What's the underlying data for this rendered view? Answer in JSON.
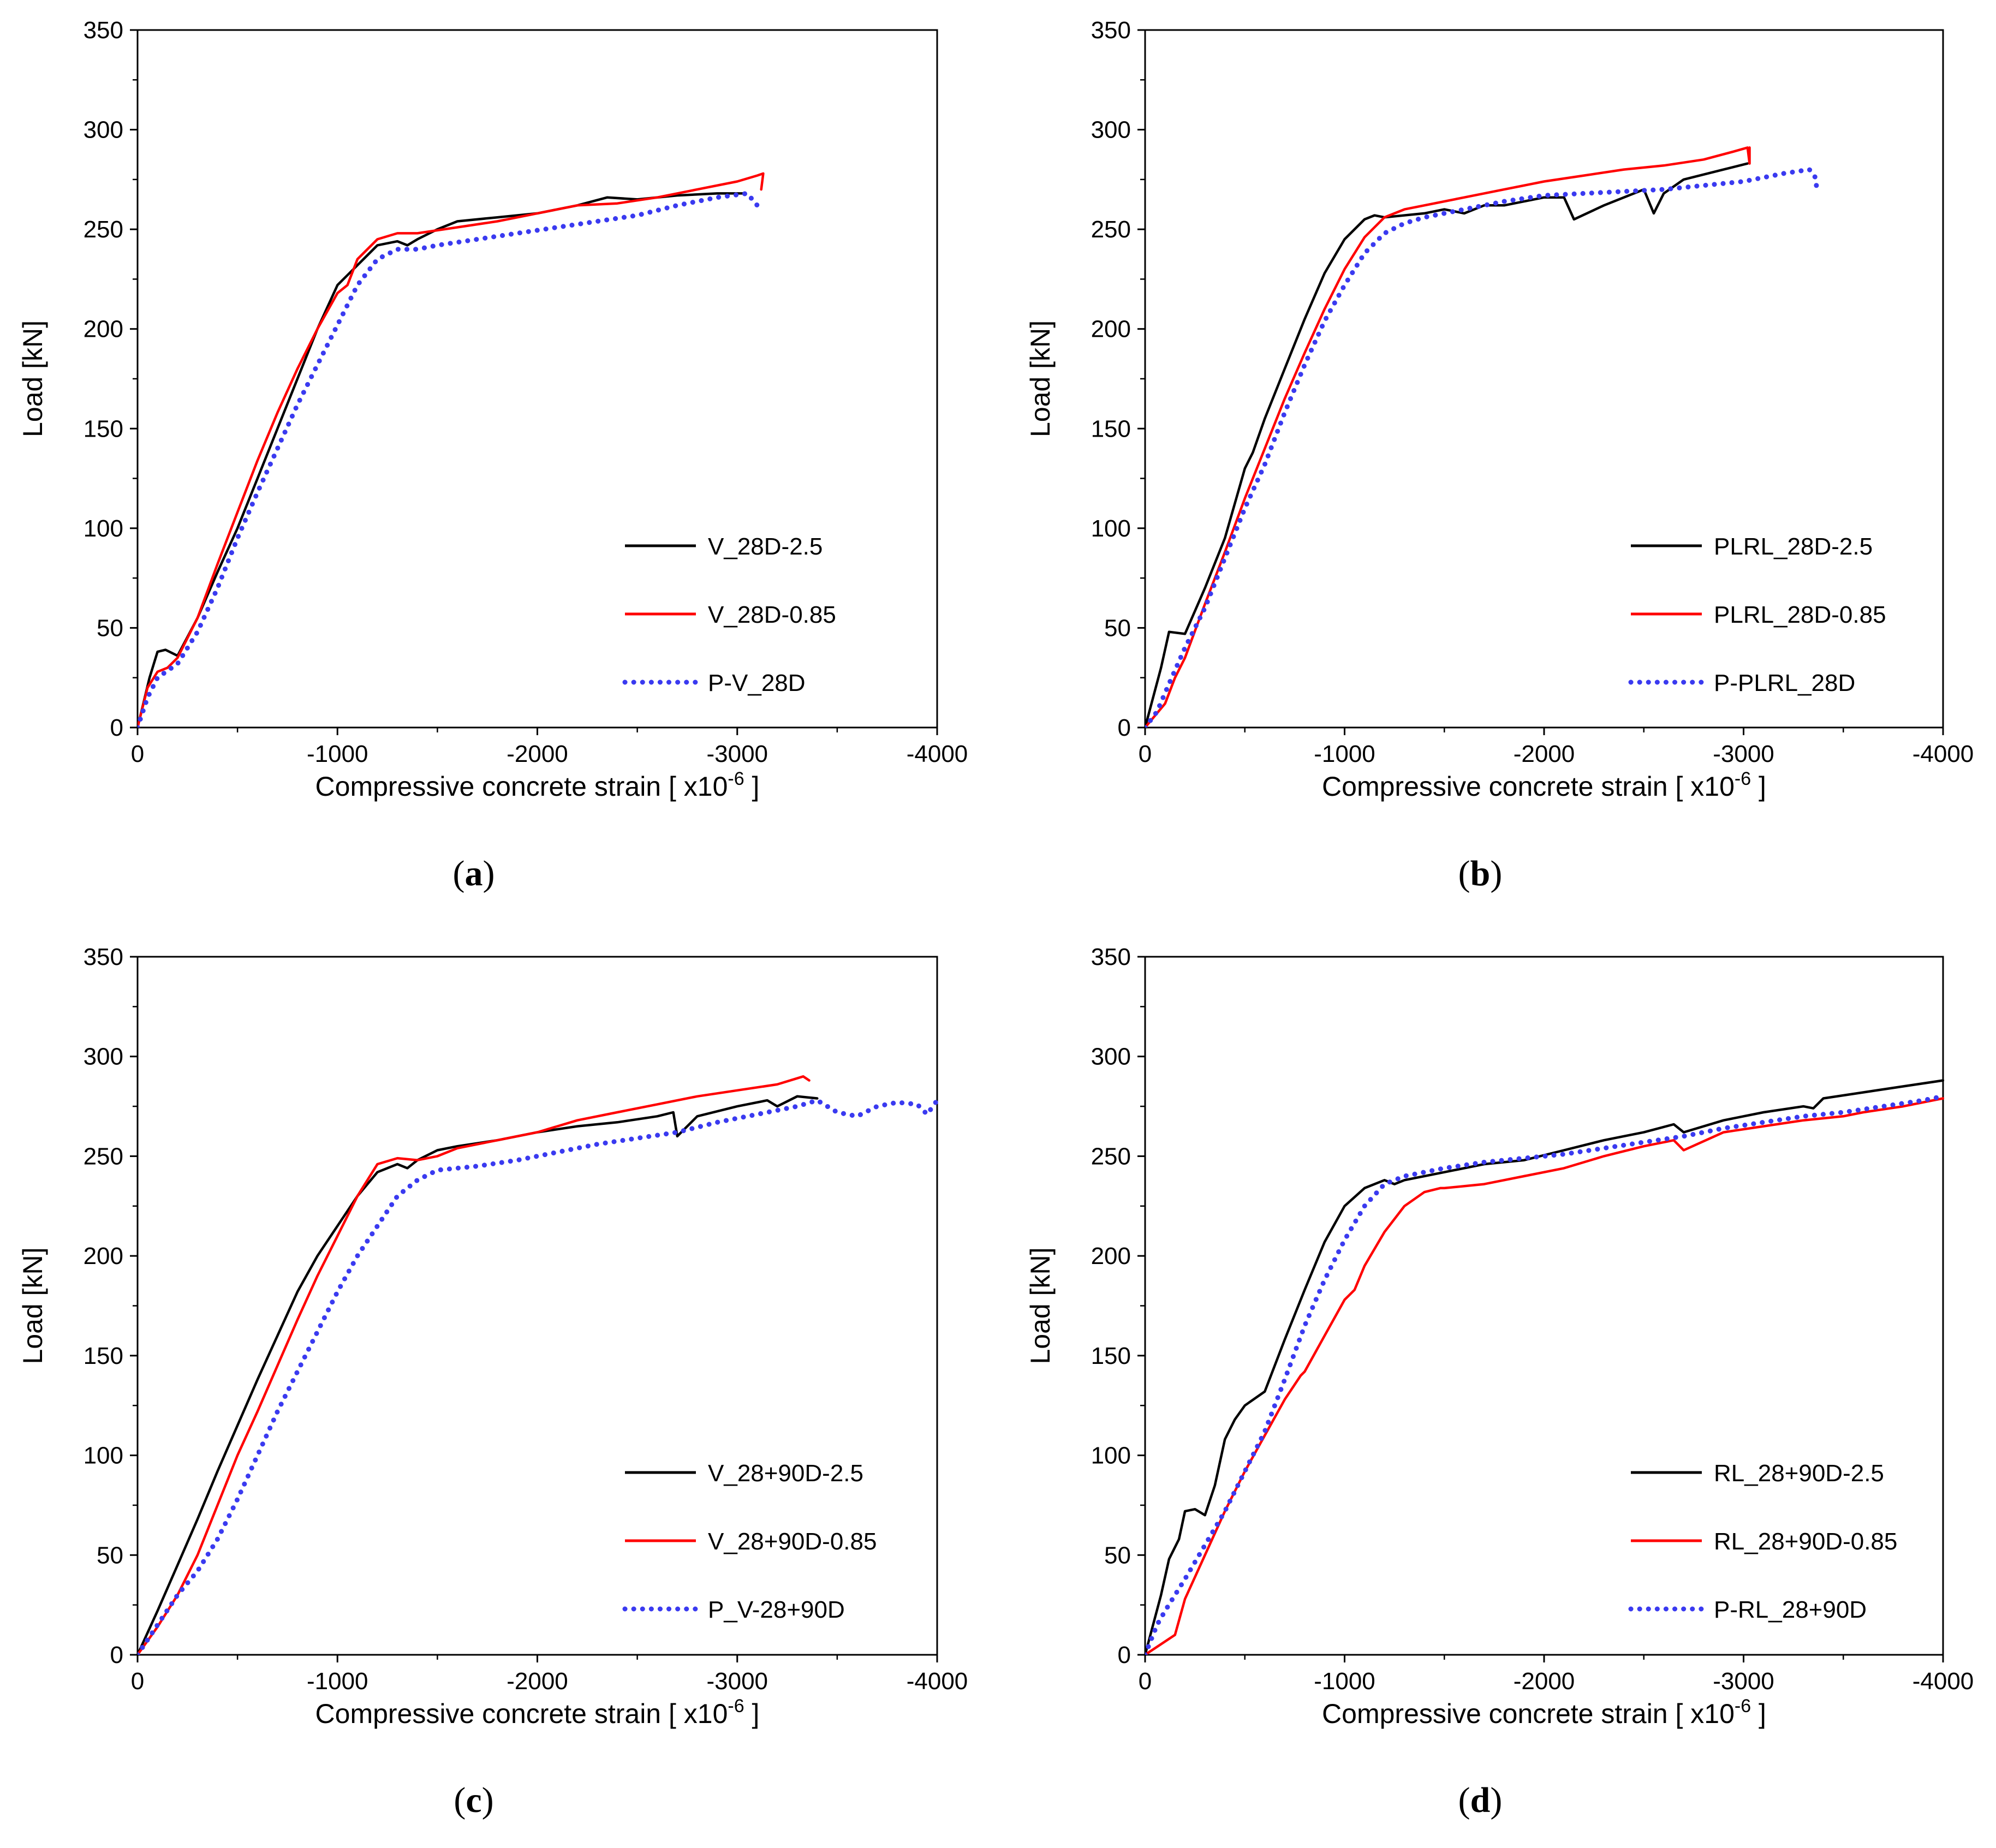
{
  "colors": {
    "black": "#000000",
    "red": "#ff0000",
    "blue": "#3a3af0"
  },
  "chart_data": [
    {
      "panel_label": "a",
      "type": "line",
      "xlabel": "Compressive concrete strain [ x10",
      "xlabel_sup": "-6",
      "xlabel_end": " ]",
      "ylabel": "Load [kN]",
      "xlim": [
        0,
        -4000
      ],
      "ylim": [
        0,
        350
      ],
      "xticks": [
        0,
        -1000,
        -2000,
        -3000,
        -4000
      ],
      "yticks": [
        0,
        50,
        100,
        150,
        200,
        250,
        300,
        350
      ],
      "series": [
        {
          "name": "V_28D-2.5",
          "color": "#000000",
          "style": "solid",
          "x": [
            0,
            -60,
            -100,
            -140,
            -200,
            -300,
            -400,
            -500,
            -600,
            -700,
            -800,
            -900,
            -1000,
            -1100,
            -1200,
            -1300,
            -1350,
            -1400,
            -1500,
            -1600,
            -1800,
            -2000,
            -2200,
            -2350,
            -2500,
            -2700,
            -2900,
            -3030
          ],
          "y": [
            0,
            25,
            38,
            39,
            36,
            55,
            78,
            100,
            125,
            150,
            175,
            200,
            222,
            232,
            242,
            244,
            242,
            245,
            250,
            254,
            256,
            258,
            262,
            266,
            265,
            267,
            268,
            268
          ]
        },
        {
          "name": "V_28D-0.85",
          "color": "#ff0000",
          "style": "solid",
          "x": [
            0,
            -50,
            -100,
            -150,
            -200,
            -300,
            -400,
            -500,
            -600,
            -700,
            -800,
            -900,
            -1000,
            -1050,
            -1100,
            -1200,
            -1300,
            -1400,
            -1600,
            -1800,
            -2000,
            -2200,
            -2400,
            -2600,
            -2800,
            -3000,
            -3100,
            -3130,
            -3120
          ],
          "y": [
            0,
            20,
            28,
            30,
            35,
            55,
            82,
            108,
            134,
            158,
            180,
            200,
            218,
            222,
            235,
            245,
            248,
            248,
            251,
            254,
            258,
            262,
            263,
            266,
            270,
            274,
            277,
            278,
            270
          ]
        },
        {
          "name": "P-V_28D",
          "color": "#3a3af0",
          "style": "dotted",
          "x": [
            0,
            -50,
            -100,
            -200,
            -300,
            -400,
            -500,
            -600,
            -700,
            -800,
            -900,
            -1000,
            -1100,
            -1200,
            -1300,
            -1400,
            -1500,
            -1700,
            -1900,
            -2100,
            -2300,
            -2500,
            -2700,
            -2900,
            -3050,
            -3100,
            -3110
          ],
          "y": [
            0,
            15,
            25,
            32,
            48,
            70,
            95,
            118,
            140,
            162,
            182,
            202,
            222,
            235,
            240,
            240,
            242,
            245,
            248,
            251,
            254,
            257,
            262,
            266,
            268,
            262,
            258
          ]
        }
      ]
    },
    {
      "panel_label": "b",
      "type": "line",
      "xlabel": "Compressive concrete strain [ x10",
      "xlabel_sup": "-6",
      "xlabel_end": " ]",
      "ylabel": "Load [kN]",
      "xlim": [
        0,
        -4000
      ],
      "ylim": [
        0,
        350
      ],
      "xticks": [
        0,
        -1000,
        -2000,
        -3000,
        -4000
      ],
      "yticks": [
        0,
        50,
        100,
        150,
        200,
        250,
        300,
        350
      ],
      "series": [
        {
          "name": "PLRL_28D-2.5",
          "color": "#000000",
          "style": "solid",
          "x": [
            0,
            -80,
            -120,
            -200,
            -300,
            -400,
            -500,
            -540,
            -600,
            -700,
            -800,
            -900,
            -1000,
            -1100,
            -1150,
            -1200,
            -1400,
            -1500,
            -1600,
            -1700,
            -1800,
            -2000,
            -2100,
            -2150,
            -2300,
            -2500,
            -2550,
            -2600,
            -2700,
            -2900,
            -3020
          ],
          "y": [
            0,
            30,
            48,
            47,
            70,
            95,
            130,
            138,
            155,
            180,
            205,
            228,
            245,
            255,
            257,
            256,
            258,
            260,
            258,
            262,
            262,
            266,
            266,
            255,
            262,
            270,
            258,
            268,
            275,
            280,
            283
          ]
        },
        {
          "name": "PLRL_28D-0.85",
          "color": "#ff0000",
          "style": "solid",
          "x": [
            0,
            -100,
            -150,
            -200,
            -300,
            -400,
            -500,
            -600,
            -700,
            -800,
            -900,
            -1000,
            -1100,
            -1200,
            -1300,
            -1400,
            -1600,
            -1800,
            -2000,
            -2200,
            -2400,
            -2600,
            -2800,
            -2950,
            -3020,
            -3030,
            -3030
          ],
          "y": [
            0,
            12,
            25,
            35,
            62,
            88,
            115,
            140,
            165,
            188,
            210,
            230,
            246,
            256,
            260,
            262,
            266,
            270,
            274,
            277,
            280,
            282,
            285,
            289,
            291,
            283,
            291
          ]
        },
        {
          "name": "P-PLRL_28D",
          "color": "#3a3af0",
          "style": "dotted",
          "x": [
            0,
            -60,
            -120,
            -200,
            -300,
            -400,
            -500,
            -600,
            -700,
            -800,
            -900,
            -1000,
            -1100,
            -1200,
            -1300,
            -1400,
            -1600,
            -1800,
            -2000,
            -2200,
            -2400,
            -2600,
            -2800,
            -3000,
            -3200,
            -3330,
            -3360,
            -3370
          ],
          "y": [
            0,
            8,
            22,
            40,
            60,
            85,
            110,
            132,
            158,
            182,
            204,
            222,
            238,
            248,
            253,
            256,
            260,
            264,
            267,
            268,
            269,
            270,
            272,
            274,
            278,
            280,
            276,
            268
          ]
        }
      ]
    },
    {
      "panel_label": "c",
      "type": "line",
      "xlabel": "Compressive concrete strain [ x10",
      "xlabel_sup": "-6",
      "xlabel_end": " ]",
      "ylabel": "Load [kN]",
      "xlim": [
        0,
        -4000
      ],
      "ylim": [
        0,
        350
      ],
      "xticks": [
        0,
        -1000,
        -2000,
        -3000,
        -4000
      ],
      "yticks": [
        0,
        50,
        100,
        150,
        200,
        250,
        300,
        350
      ],
      "series": [
        {
          "name": "V_28+90D-2.5",
          "color": "#000000",
          "style": "solid",
          "x": [
            0,
            -100,
            -200,
            -300,
            -400,
            -500,
            -600,
            -700,
            -800,
            -900,
            -1000,
            -1100,
            -1200,
            -1300,
            -1350,
            -1400,
            -1500,
            -1600,
            -1800,
            -2000,
            -2200,
            -2400,
            -2600,
            -2680,
            -2700,
            -2800,
            -3000,
            -3150,
            -3200,
            -3300,
            -3400
          ],
          "y": [
            0,
            22,
            45,
            68,
            92,
            115,
            138,
            160,
            182,
            200,
            215,
            230,
            242,
            246,
            244,
            248,
            253,
            255,
            258,
            262,
            265,
            267,
            270,
            272,
            260,
            270,
            275,
            278,
            275,
            280,
            279
          ]
        },
        {
          "name": "V_28+90D-0.85",
          "color": "#ff0000",
          "style": "solid",
          "x": [
            0,
            -100,
            -200,
            -300,
            -400,
            -500,
            -600,
            -700,
            -800,
            -900,
            -1000,
            -1100,
            -1200,
            -1300,
            -1400,
            -1500,
            -1600,
            -1800,
            -2000,
            -2200,
            -2400,
            -2600,
            -2800,
            -3000,
            -3200,
            -3330,
            -3360
          ],
          "y": [
            0,
            14,
            30,
            50,
            75,
            100,
            122,
            145,
            168,
            190,
            210,
            230,
            246,
            249,
            248,
            250,
            254,
            258,
            262,
            268,
            272,
            276,
            280,
            283,
            286,
            290,
            288
          ]
        },
        {
          "name": "P_V-28+90D",
          "color": "#3a3af0",
          "style": "dotted",
          "x": [
            0,
            -100,
            -200,
            -300,
            -400,
            -500,
            -600,
            -700,
            -800,
            -900,
            -1000,
            -1100,
            -1200,
            -1300,
            -1400,
            -1500,
            -1700,
            -1900,
            -2100,
            -2300,
            -2500,
            -2700,
            -2900,
            -3100,
            -3300,
            -3400,
            -3500,
            -3600,
            -3700,
            -3800,
            -3900,
            -3950,
            -4000
          ],
          "y": [
            0,
            15,
            30,
            42,
            58,
            78,
            100,
            122,
            142,
            162,
            182,
            200,
            215,
            230,
            238,
            243,
            245,
            248,
            252,
            256,
            259,
            262,
            267,
            271,
            275,
            278,
            272,
            270,
            275,
            277,
            276,
            271,
            278
          ]
        }
      ]
    },
    {
      "panel_label": "d",
      "type": "line",
      "xlabel": "Compressive concrete strain [ x10",
      "xlabel_sup": "-6",
      "xlabel_end": " ]",
      "ylabel": "Load [kN]",
      "xlim": [
        0,
        -4000
      ],
      "ylim": [
        0,
        350
      ],
      "xticks": [
        0,
        -1000,
        -2000,
        -3000,
        -4000
      ],
      "yticks": [
        0,
        50,
        100,
        150,
        200,
        250,
        300,
        350
      ],
      "series": [
        {
          "name": "RL_28+90D-2.5",
          "color": "#000000",
          "style": "solid",
          "x": [
            0,
            -80,
            -120,
            -170,
            -200,
            -250,
            -300,
            -350,
            -400,
            -450,
            -500,
            -600,
            -700,
            -800,
            -900,
            -1000,
            -1100,
            -1200,
            -1250,
            -1300,
            -1500,
            -1700,
            -1900,
            -2100,
            -2300,
            -2500,
            -2650,
            -2700,
            -2900,
            -3100,
            -3300,
            -3350,
            -3400,
            -3600,
            -3800,
            -4000
          ],
          "y": [
            0,
            30,
            48,
            58,
            72,
            73,
            70,
            85,
            108,
            118,
            125,
            132,
            158,
            183,
            207,
            225,
            234,
            238,
            236,
            238,
            242,
            246,
            248,
            253,
            258,
            262,
            266,
            262,
            268,
            272,
            275,
            274,
            279,
            282,
            285,
            288
          ]
        },
        {
          "name": "RL_28+90D-0.85",
          "color": "#ff0000",
          "style": "solid",
          "x": [
            0,
            -150,
            -200,
            -300,
            -400,
            -500,
            -600,
            -700,
            -780,
            -800,
            -900,
            -1000,
            -1050,
            -1100,
            -1200,
            -1300,
            -1400,
            -1480,
            -1500,
            -1700,
            -1900,
            -2100,
            -2300,
            -2500,
            -2650,
            -2700,
            -2900,
            -3100,
            -3300,
            -3500,
            -3600,
            -3800,
            -4000
          ],
          "y": [
            0,
            10,
            28,
            50,
            72,
            92,
            110,
            128,
            140,
            142,
            160,
            178,
            183,
            195,
            212,
            225,
            232,
            234,
            234,
            236,
            240,
            244,
            250,
            255,
            258,
            253,
            262,
            265,
            268,
            270,
            272,
            275,
            279
          ]
        },
        {
          "name": "P-RL_28+90D",
          "color": "#3a3af0",
          "style": "dotted",
          "x": [
            0,
            -60,
            -100,
            -150,
            -200,
            -300,
            -400,
            -500,
            -600,
            -700,
            -800,
            -900,
            -1000,
            -1100,
            -1200,
            -1300,
            -1500,
            -1700,
            -1900,
            -2100,
            -2300,
            -2500,
            -2700,
            -2900,
            -3100,
            -3300,
            -3500,
            -3700,
            -3900,
            -4000
          ],
          "y": [
            0,
            15,
            22,
            30,
            38,
            55,
            72,
            92,
            112,
            138,
            165,
            188,
            208,
            225,
            236,
            240,
            244,
            247,
            249,
            251,
            254,
            257,
            260,
            264,
            267,
            270,
            272,
            275,
            278,
            280
          ]
        }
      ]
    }
  ]
}
